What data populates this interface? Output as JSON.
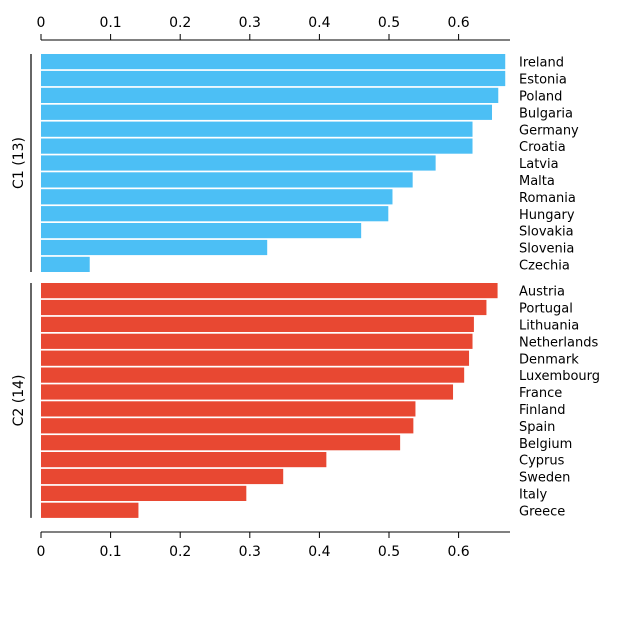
{
  "chart_data": {
    "type": "bar",
    "orientation": "horizontal",
    "axis": {
      "xlim": [
        0,
        0.68
      ],
      "ticks": [
        "0",
        "0.1",
        "0.2",
        "0.3",
        "0.4",
        "0.5",
        "0.6"
      ],
      "tick_values": [
        0,
        0.1,
        0.2,
        0.3,
        0.4,
        0.5,
        0.6
      ],
      "axes": [
        "top",
        "bottom"
      ]
    },
    "groups": [
      {
        "name": "C1 (13)",
        "color": "#4CBFF5",
        "categories": [
          "Ireland",
          "Estonia",
          "Poland",
          "Bulgaria",
          "Germany",
          "Croatia",
          "Latvia",
          "Malta",
          "Romania",
          "Hungary",
          "Slovakia",
          "Slovenia",
          "Czechia"
        ],
        "values": [
          0.667,
          0.667,
          0.657,
          0.648,
          0.62,
          0.62,
          0.567,
          0.534,
          0.505,
          0.499,
          0.46,
          0.325,
          0.07
        ]
      },
      {
        "name": "C2 (14)",
        "color": "#E84832",
        "categories": [
          "Austria",
          "Portugal",
          "Lithuania",
          "Netherlands",
          "Denmark",
          "Luxembourg",
          "France",
          "Finland",
          "Spain",
          "Belgium",
          "Cyprus",
          "Sweden",
          "Italy",
          "Greece"
        ],
        "values": [
          0.656,
          0.64,
          0.622,
          0.62,
          0.615,
          0.608,
          0.592,
          0.538,
          0.535,
          0.516,
          0.41,
          0.348,
          0.295,
          0.14
        ]
      }
    ]
  }
}
